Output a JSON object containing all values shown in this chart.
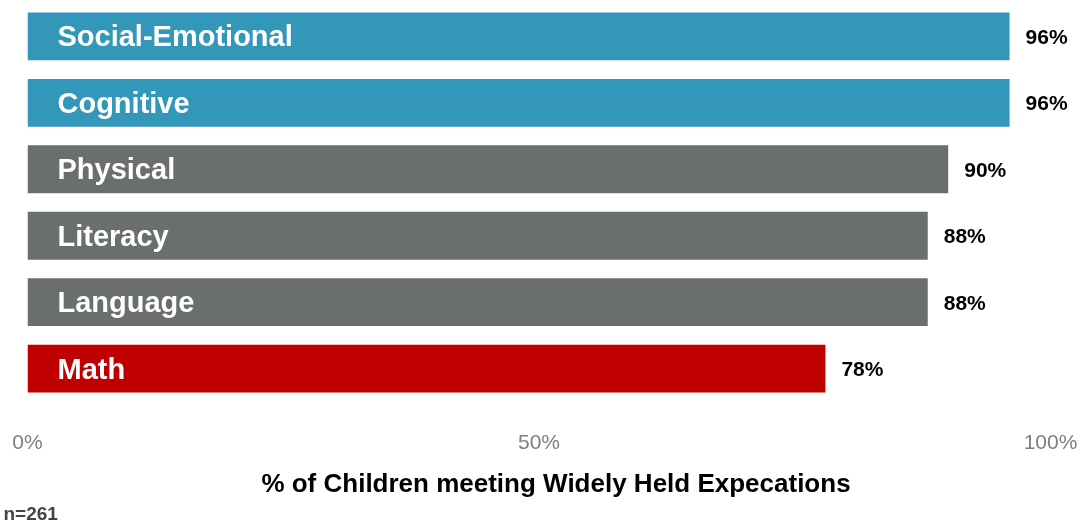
{
  "chart_data": {
    "type": "bar",
    "orientation": "horizontal",
    "xlabel": "% of Children meeting Widely Held Expecations",
    "categories": [
      "Social-Emotional",
      "Cognitive",
      "Physical",
      "Literacy",
      "Language",
      "Math"
    ],
    "values": [
      96,
      96,
      90,
      88,
      88,
      78
    ],
    "colors": [
      "#3397b9",
      "#3397b9",
      "#6a6e6c",
      "#6a6e6c",
      "#6a6e6c",
      "#c00000"
    ],
    "value_labels": [
      "96%",
      "96%",
      "90%",
      "88%",
      "88%",
      "78%"
    ],
    "xlim": [
      0,
      100
    ],
    "xticks": [
      {
        "value": 0,
        "label": "0%"
      },
      {
        "value": 50,
        "label": "50%"
      },
      {
        "value": 100,
        "label": "100%"
      }
    ],
    "annotations": [
      "n=261"
    ],
    "grid": false
  }
}
